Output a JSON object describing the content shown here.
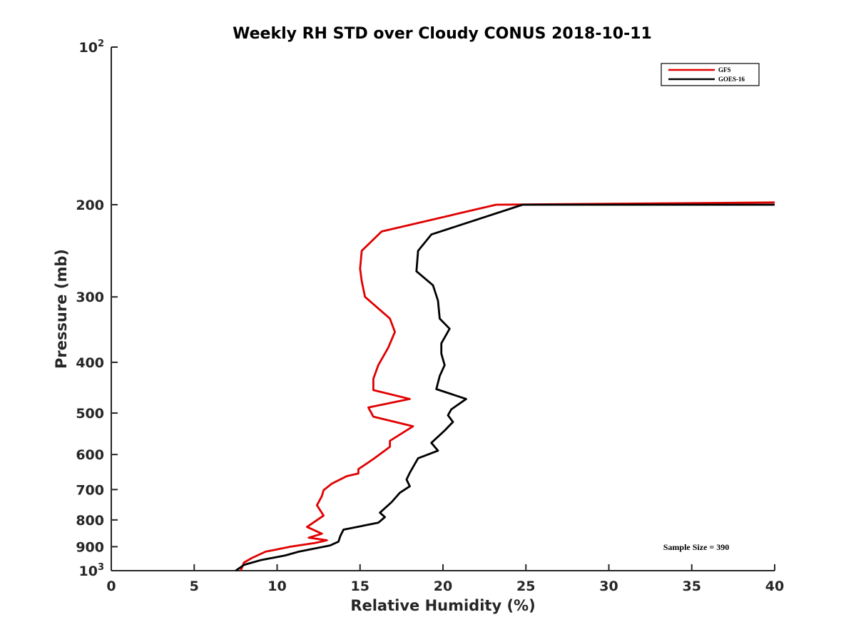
{
  "chart_data": {
    "type": "line",
    "title": "Weekly RH STD over Cloudy CONUS 2018-10-11",
    "xlabel": "Relative Humidity (%)",
    "ylabel": "Pressure (mb)",
    "xlim": [
      0,
      40
    ],
    "ylim": [
      100,
      1000
    ],
    "y_scale": "log",
    "y_reversed": true,
    "x_ticks": [
      "0",
      "5",
      "10",
      "15",
      "20",
      "25",
      "30",
      "35",
      "40"
    ],
    "y_ticks": [
      {
        "value": 100,
        "base": "10",
        "exp": "2"
      },
      {
        "value": 200,
        "label": "200"
      },
      {
        "value": 300,
        "label": "300"
      },
      {
        "value": 400,
        "label": "400"
      },
      {
        "value": 500,
        "label": "500"
      },
      {
        "value": 600,
        "label": "600"
      },
      {
        "value": 700,
        "label": "700"
      },
      {
        "value": 800,
        "label": "800"
      },
      {
        "value": 900,
        "label": "900"
      },
      {
        "value": 1000,
        "base": "10",
        "exp": "3"
      }
    ],
    "grid": false,
    "legend_position": "top-right",
    "annotation": "Sample Size = 390",
    "series": [
      {
        "name": "GFS",
        "color": "#e00000",
        "points": [
          [
            40,
            198
          ],
          [
            23.2,
            200
          ],
          [
            16.3,
            225
          ],
          [
            15.1,
            245
          ],
          [
            15.0,
            265
          ],
          [
            15.1,
            280
          ],
          [
            15.3,
            300
          ],
          [
            16.8,
            330
          ],
          [
            17.1,
            350
          ],
          [
            16.7,
            375
          ],
          [
            16.1,
            405
          ],
          [
            15.8,
            430
          ],
          [
            15.8,
            452
          ],
          [
            18.0,
            470
          ],
          [
            15.5,
            488
          ],
          [
            15.8,
            508
          ],
          [
            18.2,
            530
          ],
          [
            16.8,
            565
          ],
          [
            16.8,
            580
          ],
          [
            15.8,
            612
          ],
          [
            14.9,
            640
          ],
          [
            14.9,
            652
          ],
          [
            14.2,
            660
          ],
          [
            13.3,
            682
          ],
          [
            12.8,
            702
          ],
          [
            12.7,
            720
          ],
          [
            12.4,
            750
          ],
          [
            12.8,
            785
          ],
          [
            11.8,
            825
          ],
          [
            12.7,
            850
          ],
          [
            11.9,
            865
          ],
          [
            13.0,
            875
          ],
          [
            12.3,
            885
          ],
          [
            10.8,
            900
          ],
          [
            9.3,
            920
          ],
          [
            8.5,
            945
          ],
          [
            8.0,
            965
          ],
          [
            7.8,
            1000
          ]
        ]
      },
      {
        "name": "GOES-16",
        "color": "#000000",
        "points": [
          [
            40,
            200
          ],
          [
            24.8,
            200
          ],
          [
            19.3,
            228
          ],
          [
            18.5,
            245
          ],
          [
            18.4,
            268
          ],
          [
            19.4,
            285
          ],
          [
            19.7,
            305
          ],
          [
            19.8,
            330
          ],
          [
            20.4,
            345
          ],
          [
            19.9,
            368
          ],
          [
            19.9,
            385
          ],
          [
            20.1,
            405
          ],
          [
            19.8,
            425
          ],
          [
            19.6,
            450
          ],
          [
            21.4,
            470
          ],
          [
            20.5,
            492
          ],
          [
            20.3,
            505
          ],
          [
            20.6,
            520
          ],
          [
            20.1,
            540
          ],
          [
            19.3,
            570
          ],
          [
            19.7,
            590
          ],
          [
            18.5,
            610
          ],
          [
            18.0,
            650
          ],
          [
            17.8,
            670
          ],
          [
            18.0,
            690
          ],
          [
            17.4,
            710
          ],
          [
            16.9,
            740
          ],
          [
            16.2,
            775
          ],
          [
            16.5,
            790
          ],
          [
            16.1,
            810
          ],
          [
            14.0,
            835
          ],
          [
            13.8,
            860
          ],
          [
            13.7,
            880
          ],
          [
            13.2,
            895
          ],
          [
            11.3,
            920
          ],
          [
            10.5,
            935
          ],
          [
            9.0,
            955
          ],
          [
            8.5,
            965
          ],
          [
            8.0,
            975
          ],
          [
            7.9,
            980
          ],
          [
            7.7,
            990
          ],
          [
            7.5,
            1000
          ]
        ]
      }
    ]
  }
}
